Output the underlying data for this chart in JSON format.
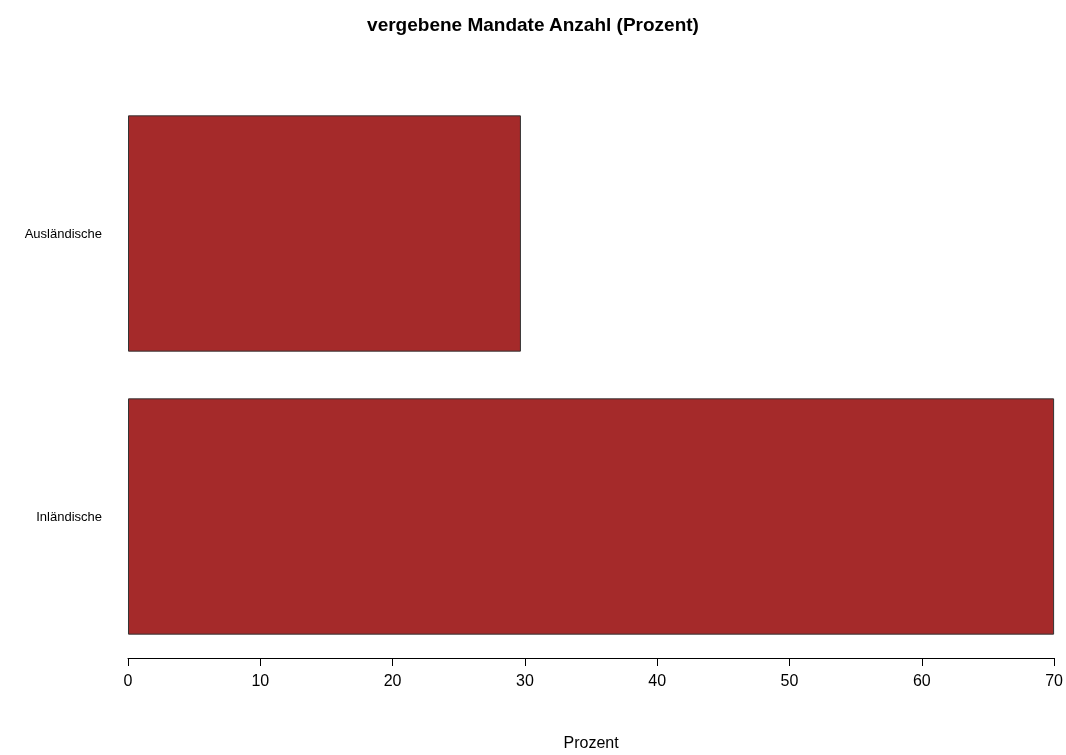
{
  "chart_data": {
    "type": "bar",
    "orientation": "horizontal",
    "title": "vergebene Mandate Anzahl (Prozent)",
    "xlabel": "Prozent",
    "categories": [
      "Ausländische",
      "Inländische"
    ],
    "values": [
      29.7,
      70
    ],
    "color": "#a52a2a",
    "xlim": [
      0,
      70
    ],
    "xticks": [
      0,
      10,
      20,
      30,
      40,
      50,
      60,
      70
    ],
    "grid": false
  }
}
